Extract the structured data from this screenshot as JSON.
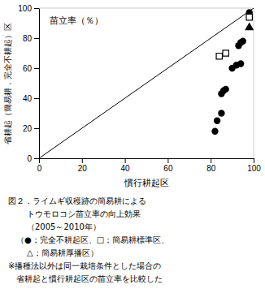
{
  "chart_data": {
    "type": "scatter",
    "xlabel": "慣行耕起区",
    "ylabel": "省耕起（簡易耕，完全不耕起）区",
    "annotation": "苗立率（％）",
    "xlim": [
      0,
      100
    ],
    "ylim": [
      0,
      100
    ],
    "xticks": [
      0,
      20,
      40,
      60,
      80,
      100
    ],
    "yticks": [
      0,
      20,
      40,
      60,
      80,
      100
    ],
    "series": [
      {
        "type": "line",
        "x": [
          0,
          100
        ],
        "values": [
          0,
          100
        ],
        "color": "black",
        "line_style": "solid"
      },
      {
        "type": "scatter",
        "marker": "circle",
        "color": "black",
        "x": [
          82,
          83,
          85,
          85,
          86,
          87,
          90,
          92,
          94,
          93,
          94,
          95,
          98
        ],
        "values": [
          18,
          25,
          30,
          43,
          45,
          46,
          60,
          62,
          63,
          75,
          77,
          78,
          97
        ]
      },
      {
        "type": "scatter",
        "marker": "open-square",
        "color": "black",
        "x": [
          84,
          87,
          98
        ],
        "values": [
          68,
          70,
          94
        ]
      },
      {
        "type": "scatter",
        "marker": "triangle",
        "color": "black",
        "x": [
          98
        ],
        "values": [
          87
        ]
      }
    ],
    "caption": [
      "図２．ライムギ収穫跡の簡易耕による",
      "トウモロコシ苗立率の向上効果",
      "（2005～2010年）",
      "（●；完全不耕起区、□；簡易耕標準区、",
      "△；簡易耕厚播区）",
      "※播種法以外は同一栽培条件とした場合の",
      "省耕起と慣行耕起区の苗立率を比較した"
    ]
  }
}
